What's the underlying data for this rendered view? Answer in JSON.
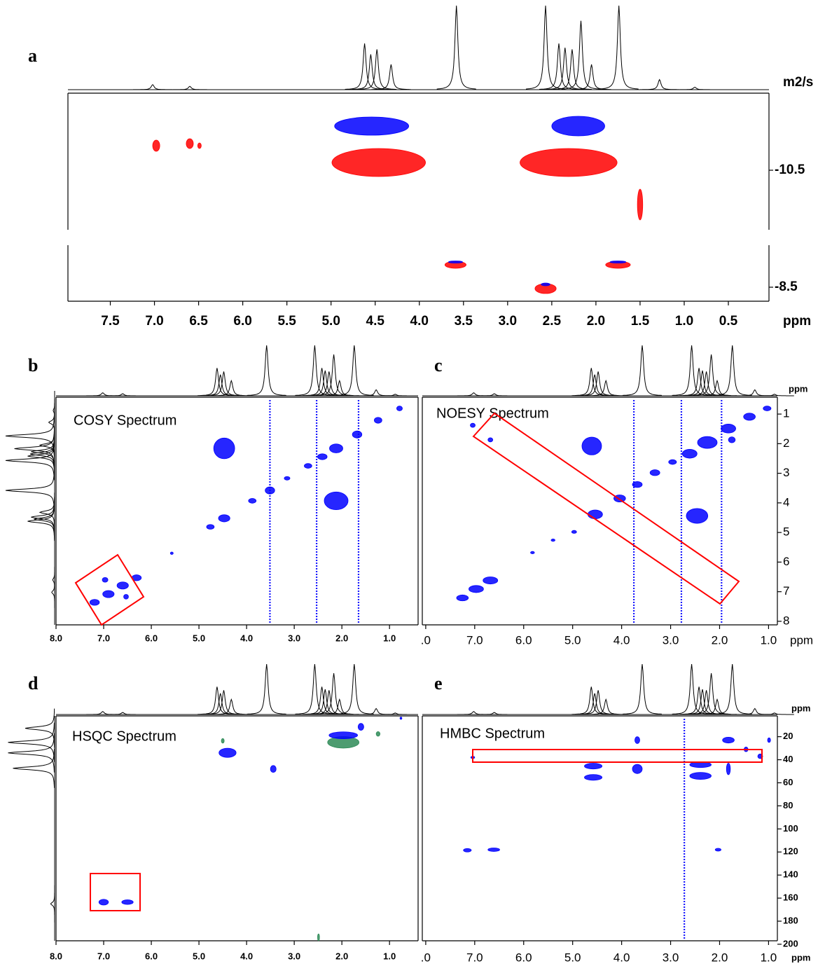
{
  "proton_spectrum": {
    "shifts": [
      7.02,
      6.6,
      4.62,
      4.55,
      4.48,
      4.32,
      3.58,
      2.57,
      2.42,
      2.35,
      2.27,
      2.17,
      2.05,
      1.74,
      1.28,
      0.88
    ],
    "heights": [
      6,
      4,
      55,
      42,
      48,
      30,
      100,
      100,
      55,
      50,
      48,
      82,
      30,
      100,
      12,
      3
    ]
  },
  "chart_data": [
    {
      "type": "contour",
      "label": "a",
      "y_label": "m2/s",
      "top_trace": true,
      "xlim": [
        7.98,
        0.04
      ],
      "ylim": [
        -9.65,
        -11.6
      ],
      "yticks": [
        -10.5
      ],
      "series": [
        {
          "color": "#0000ff",
          "x": [
            4.54,
            2.2
          ],
          "y": [
            -11.13,
            -11.13
          ],
          "x_width": [
            0.42,
            0.3
          ],
          "y_width": [
            0.13,
            0.14
          ]
        },
        {
          "color": "#ff0000",
          "x": [
            4.46,
            2.31,
            6.98,
            6.6,
            6.49,
            1.5
          ],
          "y": [
            -10.61,
            -10.61,
            -10.85,
            -10.88,
            -10.85,
            -10.01
          ],
          "x_width": [
            0.53,
            0.55,
            0.04,
            0.04,
            0.02,
            0.03
          ],
          "y_width": [
            0.2,
            0.2,
            0.08,
            0.07,
            0.04,
            0.22
          ]
        }
      ]
    },
    {
      "type": "contour",
      "x_label": "ppm",
      "xlim": [
        7.98,
        0.04
      ],
      "ylim": [
        -8.3,
        -9.1
      ],
      "yticks": [
        -8.5
      ],
      "xticks": [
        7.5,
        {
          "value": 7,
          "label": "7.0"
        },
        6.5,
        {
          "value": 6,
          "label": "6.0"
        },
        5.5,
        {
          "value": 5,
          "label": "5.0"
        },
        4.5,
        {
          "value": 4,
          "label": "4.0"
        },
        3.5,
        {
          "value": 3,
          "label": "3.0"
        },
        2.5,
        {
          "value": 2,
          "label": "2.0"
        },
        1.5,
        {
          "value": 1,
          "label": "1.0"
        },
        0.5
      ],
      "series": [
        {
          "color": "#ff0000",
          "x": [
            3.59,
            1.75,
            2.57
          ],
          "y": [
            -8.82,
            -8.82,
            -8.48
          ],
          "x_width": [
            0.12,
            0.14,
            0.12
          ],
          "y_width": [
            0.05,
            0.05,
            0.07
          ]
        },
        {
          "color": "#0000ff",
          "x": [
            3.59,
            1.75,
            2.57
          ],
          "y": [
            -8.86,
            -8.86,
            -8.54
          ],
          "x_width": [
            0.08,
            0.09,
            0.05
          ],
          "y_width": [
            0.015,
            0.015,
            0.02
          ]
        }
      ]
    },
    {
      "type": "contour",
      "label": "b",
      "title": "COSY Spectrum",
      "top_trace": true,
      "left_trace": true,
      "xlim": [
        8.0,
        0.4
      ],
      "ylim": [
        8.12,
        0.43
      ],
      "xticks": [
        {
          "value": 8,
          "label": "8.0"
        },
        {
          "value": 7,
          "label": "7.0"
        },
        {
          "value": 6,
          "label": "6.0"
        },
        {
          "value": 5,
          "label": "5.0"
        },
        {
          "value": 4,
          "label": "4.0"
        },
        {
          "value": 3,
          "label": "3.0"
        },
        {
          "value": 2,
          "label": "2.0"
        },
        {
          "value": 1,
          "label": "1.0"
        }
      ],
      "streaks": [
        3.51,
        2.53,
        1.65
      ],
      "series": [
        {
          "color": "#0000ff",
          "x": [
            4.47,
            2.12,
            0.79,
            1.24,
            1.68,
            2.12,
            2.41,
            2.71,
            3.15,
            3.51,
            3.88,
            4.47,
            4.76,
            5.57,
            6.31,
            6.6,
            6.9,
            7.19,
            6.97,
            6.53
          ],
          "y": [
            2.16,
            3.93,
            0.81,
            1.21,
            1.69,
            2.16,
            2.44,
            2.75,
            3.17,
            3.58,
            3.93,
            4.52,
            4.81,
            5.7,
            6.53,
            6.79,
            7.08,
            7.36,
            6.6,
            7.17
          ],
          "x_width": [
            0.22,
            0.25,
            0.06,
            0.08,
            0.1,
            0.14,
            0.1,
            0.08,
            0.06,
            0.1,
            0.08,
            0.12,
            0.08,
            0.03,
            0.1,
            0.12,
            0.12,
            0.1,
            0.06,
            0.05
          ],
          "y_width": [
            0.35,
            0.3,
            0.08,
            0.1,
            0.12,
            0.15,
            0.1,
            0.08,
            0.06,
            0.12,
            0.08,
            0.12,
            0.08,
            0.04,
            0.1,
            0.12,
            0.12,
            0.1,
            0.08,
            0.08
          ]
        }
      ]
    },
    {
      "type": "contour",
      "label": "c",
      "title": "NOESY Spectrum",
      "x_label": "ppm",
      "y_label": "ppm",
      "top_trace": true,
      "xlim": [
        8.07,
        0.82
      ],
      "ylim": [
        8.12,
        0.43
      ],
      "xticks": [
        {
          "value": 8,
          "label": ".0"
        },
        {
          "value": 7,
          "label": "7.0"
        },
        {
          "value": 6,
          "label": "6.0"
        },
        {
          "value": 5,
          "label": "5.0"
        },
        {
          "value": 4,
          "label": "4.0"
        },
        {
          "value": 3,
          "label": "3.0"
        },
        {
          "value": 2,
          "label": "2.0"
        },
        {
          "value": 1,
          "label": "1.0"
        }
      ],
      "yticks": [
        1,
        2,
        3,
        4,
        5,
        6,
        7,
        8
      ],
      "streaks": [
        3.75,
        2.78,
        1.96
      ],
      "series": [
        {
          "color": "#0000ff",
          "x": [
            4.61,
            2.46,
            1.75,
            7.04,
            6.68,
            1.03,
            1.39,
            1.82,
            2.25,
            2.61,
            2.96,
            3.32,
            3.68,
            4.04,
            4.54,
            4.97,
            5.4,
            5.82,
            6.68,
            6.97,
            7.25
          ],
          "y": [
            2.08,
            4.44,
            1.87,
            1.38,
            1.87,
            0.81,
            1.09,
            1.49,
            1.96,
            2.34,
            2.62,
            2.98,
            3.38,
            3.85,
            4.39,
            4.98,
            5.26,
            5.68,
            6.62,
            6.91,
            7.21
          ],
          "x_width": [
            0.2,
            0.22,
            0.07,
            0.05,
            0.05,
            0.08,
            0.12,
            0.15,
            0.2,
            0.15,
            0.08,
            0.1,
            0.1,
            0.12,
            0.15,
            0.05,
            0.04,
            0.04,
            0.15,
            0.15,
            0.12
          ],
          "y_width": [
            0.3,
            0.25,
            0.1,
            0.07,
            0.07,
            0.08,
            0.12,
            0.15,
            0.2,
            0.15,
            0.08,
            0.1,
            0.1,
            0.12,
            0.15,
            0.05,
            0.04,
            0.04,
            0.12,
            0.12,
            0.1
          ]
        }
      ]
    },
    {
      "type": "contour",
      "label": "d",
      "title": "HSQC Spectrum",
      "top_trace": true,
      "xlim": [
        8.0,
        0.4
      ],
      "ylim": [
        197,
        2
      ],
      "xticks": [
        {
          "value": 8,
          "label": "8.0"
        },
        {
          "value": 7,
          "label": "7.0"
        },
        {
          "value": 6,
          "label": "6.0"
        },
        {
          "value": 5,
          "label": "5.0"
        },
        {
          "value": 4,
          "label": "4.0"
        },
        {
          "value": 3,
          "label": "3.0"
        },
        {
          "value": 2,
          "label": "2.0"
        },
        {
          "value": 1,
          "label": "1.0"
        }
      ],
      "carbon_spectrum": {
        "shifts": [
          12.7,
          24.9,
          34,
          47.4,
          165
        ],
        "heights": [
          60,
          95,
          95,
          85,
          8
        ]
      },
      "series": [
        {
          "color": "#2e8b57",
          "x": [
            1.97,
            1.24,
            2.49,
            4.5
          ],
          "y": [
            24.9,
            17.6,
            194,
            23.6
          ],
          "x_width": [
            0.33,
            0.04,
            0.02,
            0.03
          ],
          "y_width": [
            5,
            2,
            3,
            2
          ]
        },
        {
          "color": "#0000ff",
          "x": [
            4.4,
            3.44,
            1.97,
            1.6,
            0.76,
            7.0,
            6.5
          ],
          "y": [
            34,
            48,
            18.8,
            11.5,
            4,
            163.5,
            163.5
          ],
          "x_width": [
            0.18,
            0.06,
            0.3,
            0.06,
            0.02,
            0.1,
            0.12
          ],
          "y_width": [
            4,
            3,
            3,
            3,
            1,
            2.5,
            2
          ]
        }
      ]
    },
    {
      "type": "contour",
      "label": "e",
      "title": "HMBC Spectrum",
      "x_label": "ppm",
      "y_label": "ppm",
      "top_trace": true,
      "xlim": [
        8.07,
        0.82
      ],
      "ylim": [
        197,
        2
      ],
      "xticks": [
        {
          "value": 8,
          "label": ".0"
        },
        {
          "value": 7,
          "label": "7.0"
        },
        {
          "value": 6,
          "label": "6.0"
        },
        {
          "value": 5,
          "label": "5.0"
        },
        {
          "value": 4,
          "label": "4.0"
        },
        {
          "value": 3,
          "label": "3.0"
        },
        {
          "value": 2,
          "label": "2.0"
        },
        {
          "value": 1,
          "label": "1.0"
        }
      ],
      "yticks": [
        20,
        40,
        60,
        80,
        100,
        120,
        140,
        160,
        180,
        200
      ],
      "streaks": [
        2.72
      ],
      "series": [
        {
          "color": "#0000ff",
          "x": [
            3.68,
            4.58,
            4.58,
            3.68,
            2.39,
            2.39,
            1.82,
            1.82,
            1.46,
            1.17,
            0.99,
            7.15,
            6.61,
            2.03,
            7.04
          ],
          "y": [
            23,
            45.5,
            55.3,
            48,
            44.3,
            54,
            23,
            48,
            31,
            37,
            23,
            118.5,
            118,
            118,
            38
          ],
          "x_width": [
            0.05,
            0.18,
            0.18,
            0.1,
            0.22,
            0.22,
            0.12,
            0.04,
            0.04,
            0.05,
            0.03,
            0.08,
            0.12,
            0.06,
            0.04
          ],
          "y_width": [
            3,
            2.5,
            2.5,
            4,
            2.5,
            3,
            2.5,
            5,
            2,
            2,
            2,
            1.5,
            1.5,
            1.2,
            1
          ]
        }
      ]
    }
  ]
}
